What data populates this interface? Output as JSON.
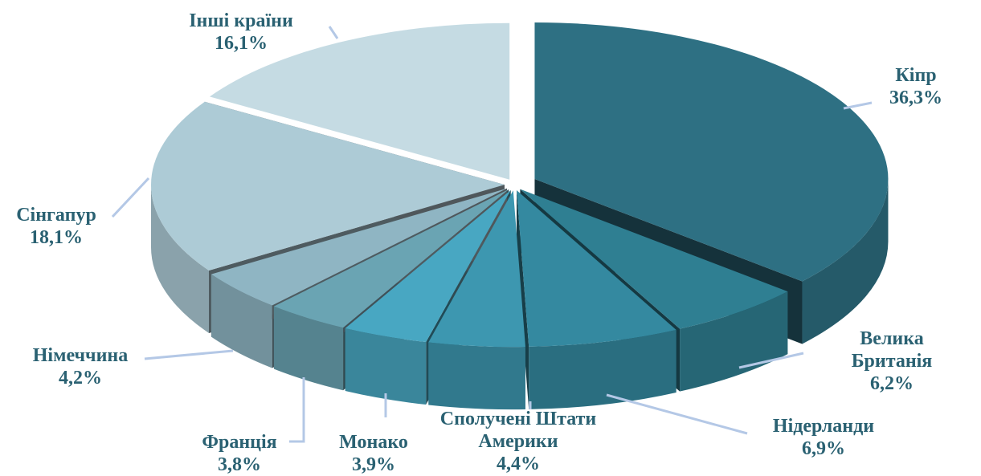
{
  "chart_data": {
    "type": "pie3d",
    "categories": [
      "Кіпр",
      "Велика Британія",
      "Нідерланди",
      "Сполучені Штати Америки",
      "Монако",
      "Франція",
      "Німеччина",
      "Сінгапур",
      "Інші країни"
    ],
    "values": [
      36.3,
      6.2,
      6.9,
      4.4,
      3.9,
      3.8,
      4.2,
      18.1,
      16.1
    ],
    "value_labels": [
      "36,3%",
      "6,2%",
      "6,9%",
      "4,4%",
      "3,9%",
      "3,8%",
      "4,2%",
      "18,1%",
      "16,1%"
    ],
    "colors": [
      "#2e7083",
      "#2f7f92",
      "#3489a0",
      "#3d97b0",
      "#48a7c2",
      "#6aa4b3",
      "#8fb5c3",
      "#adcbd6",
      "#c5dbe3"
    ]
  }
}
